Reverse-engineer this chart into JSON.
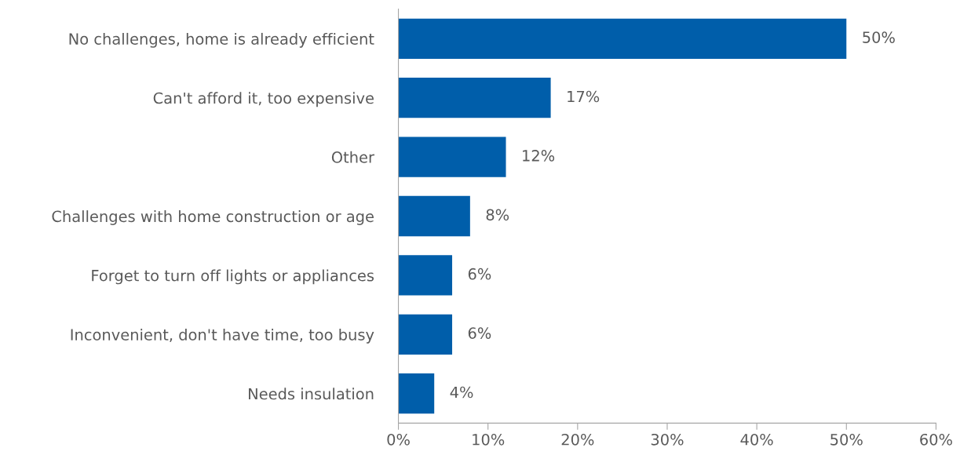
{
  "chart_data": {
    "type": "bar",
    "orientation": "horizontal",
    "categories": [
      "No challenges, home is already efficient",
      "Can't afford it, too expensive",
      "Other",
      "Challenges with home construction or age",
      "Forget to turn off lights or appliances",
      "Inconvenient, don't have time, too busy",
      "Needs insulation"
    ],
    "values": [
      50,
      17,
      12,
      8,
      6,
      6,
      4
    ],
    "value_labels": [
      "50%",
      "17%",
      "12%",
      "8%",
      "6%",
      "6%",
      "4%"
    ],
    "color": "#005eaa",
    "xlim": [
      0,
      60
    ],
    "xticks": [
      {
        "value": 0,
        "label": "0%"
      },
      {
        "value": 10,
        "label": "10%"
      },
      {
        "value": 20,
        "label": "20%"
      },
      {
        "value": 30,
        "label": "30%"
      },
      {
        "value": 40,
        "label": "40%"
      },
      {
        "value": 50,
        "label": "50%"
      },
      {
        "value": 60,
        "label": "60%"
      }
    ],
    "grid": false,
    "legend": false
  }
}
